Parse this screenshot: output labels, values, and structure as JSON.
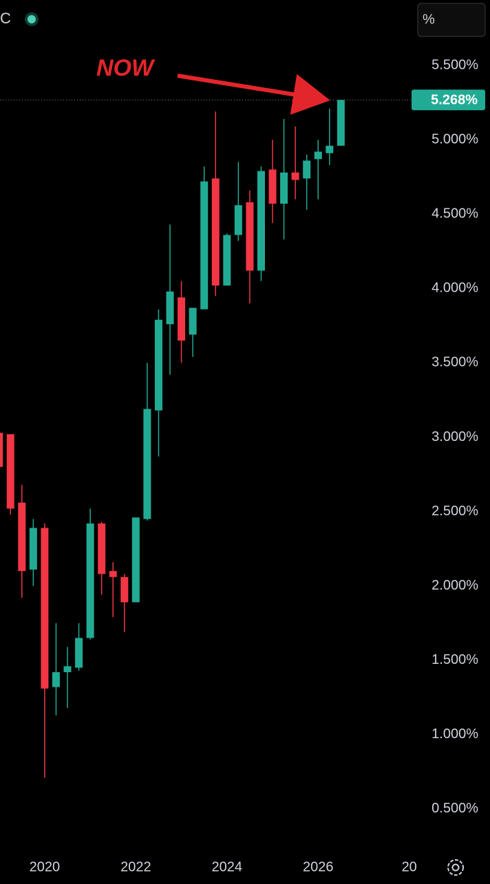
{
  "toolbar": {
    "symbol": "C",
    "scale_button": "%"
  },
  "chart_data": {
    "type": "candlestick",
    "annotation": "NOW",
    "x": [
      2019.0,
      2019.25,
      2019.5,
      2019.75,
      2020.0,
      2020.25,
      2020.5,
      2020.75,
      2021.0,
      2021.25,
      2021.5,
      2021.75,
      2022.0,
      2022.25,
      2022.5,
      2022.75,
      2023.0,
      2023.25,
      2023.5,
      2023.75,
      2024.0,
      2024.25,
      2024.5,
      2024.75,
      2025.0,
      2025.25,
      2025.5,
      2025.75,
      2026.0,
      2026.25,
      2026.5
    ],
    "open": [
      3.03,
      3.02,
      2.56,
      2.11,
      2.39,
      1.32,
      1.42,
      1.45,
      1.65,
      2.42,
      2.1,
      2.06,
      1.89,
      2.45,
      3.18,
      3.76,
      3.94,
      3.69,
      3.86,
      4.74,
      4.02,
      4.36,
      4.58,
      4.12,
      4.8,
      4.57,
      4.78,
      4.74,
      4.87,
      4.91,
      4.96
    ],
    "high": [
      3.14,
      3.02,
      2.68,
      2.45,
      2.42,
      1.75,
      1.59,
      1.75,
      2.52,
      2.43,
      2.16,
      2.08,
      2.46,
      3.5,
      3.86,
      4.43,
      4.05,
      3.87,
      4.82,
      5.19,
      4.37,
      4.85,
      4.66,
      4.82,
      5.0,
      5.14,
      5.09,
      4.9,
      5.0,
      5.21,
      5.268
    ],
    "low": [
      2.75,
      2.48,
      1.92,
      2.0,
      0.71,
      1.13,
      1.18,
      1.43,
      1.64,
      1.94,
      1.79,
      1.69,
      1.89,
      2.44,
      2.87,
      3.42,
      3.5,
      3.54,
      3.86,
      3.95,
      4.02,
      4.32,
      3.9,
      4.05,
      4.44,
      4.33,
      4.6,
      4.53,
      4.6,
      4.83,
      4.96
    ],
    "close": [
      2.8,
      2.52,
      2.1,
      2.39,
      1.31,
      1.42,
      1.46,
      1.65,
      2.42,
      2.08,
      2.06,
      1.89,
      2.46,
      3.19,
      3.79,
      3.98,
      3.65,
      3.87,
      4.72,
      4.02,
      4.36,
      4.56,
      4.12,
      4.79,
      4.57,
      4.78,
      4.73,
      4.86,
      4.92,
      4.96,
      5.268
    ],
    "up_color": "#22ab94",
    "down_color": "#f23645",
    "last_price": {
      "value": 5.268,
      "label": "5.268%"
    },
    "xlim": [
      2019.02,
      2028.08
    ],
    "xticks": [
      2020,
      2022,
      2024,
      2026,
      {
        "value": 2028,
        "label": "20"
      }
    ],
    "ylim": [
      0.25,
      5.94
    ],
    "yticks": [
      {
        "value": 0.5,
        "label": "0.500%"
      },
      {
        "value": 1.0,
        "label": "1.000%"
      },
      {
        "value": 1.5,
        "label": "1.500%"
      },
      {
        "value": 2.0,
        "label": "2.000%"
      },
      {
        "value": 2.5,
        "label": "2.500%"
      },
      {
        "value": 3.0,
        "label": "3.000%"
      },
      {
        "value": 3.5,
        "label": "3.500%"
      },
      {
        "value": 4.0,
        "label": "4.000%"
      },
      {
        "value": 4.5,
        "label": "4.500%"
      },
      {
        "value": 5.0,
        "label": "5.000%"
      },
      {
        "value": 5.5,
        "label": "5.500%"
      }
    ]
  }
}
